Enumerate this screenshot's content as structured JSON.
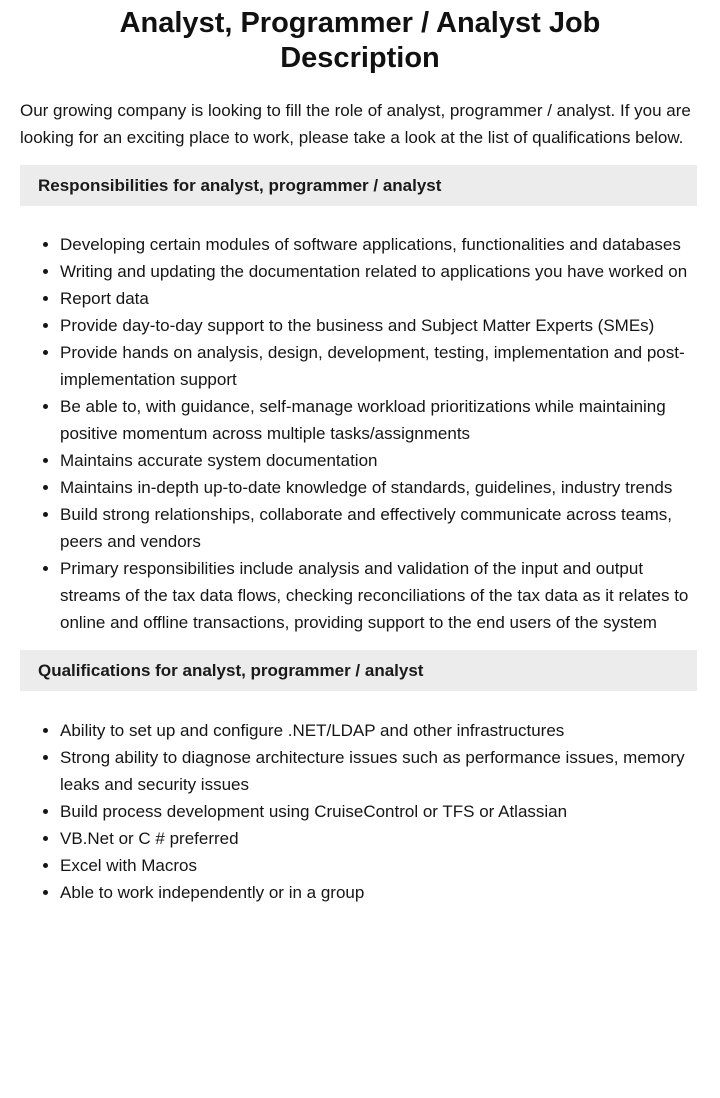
{
  "page": {
    "title": "Analyst, Programmer / Analyst Job Description",
    "intro": "Our growing company is looking to fill the role of analyst, programmer / analyst. If you are looking for an exciting place to work, please take a look at the list of qualifications below."
  },
  "colors": {
    "section_header_bg": "#ececec",
    "text": "#151515",
    "background": "#ffffff"
  },
  "sections": [
    {
      "heading": "Responsibilities for analyst, programmer / analyst",
      "items": [
        "Developing certain modules of software applications, functionalities and databases",
        "Writing and updating the documentation related to applications you have worked on",
        "Report data",
        "Provide day-to-day support to the business and Subject Matter Experts (SMEs)",
        "Provide hands on analysis, design, development, testing, implementation and post-implementation support",
        "Be able to, with guidance, self-manage workload prioritizations while maintaining positive momentum across multiple tasks/assignments",
        "Maintains accurate system documentation",
        "Maintains in-depth up-to-date knowledge of standards, guidelines, industry trends",
        "Build strong relationships, collaborate and effectively communicate across teams, peers and vendors",
        "Primary responsibilities include analysis and validation of the input and output streams of the tax data flows, checking reconciliations of the tax data as it relates to online and offline transactions, providing support to the end users of the system"
      ]
    },
    {
      "heading": "Qualifications for analyst, programmer / analyst",
      "items": [
        "Ability to set up and configure .NET/LDAP and other infrastructures",
        "Strong ability to diagnose architecture issues such as performance issues, memory leaks and security issues",
        "Build process development using CruiseControl or TFS or Atlassian",
        "VB.Net or C # preferred",
        "Excel with Macros",
        "Able to work independently or in a group"
      ]
    }
  ]
}
